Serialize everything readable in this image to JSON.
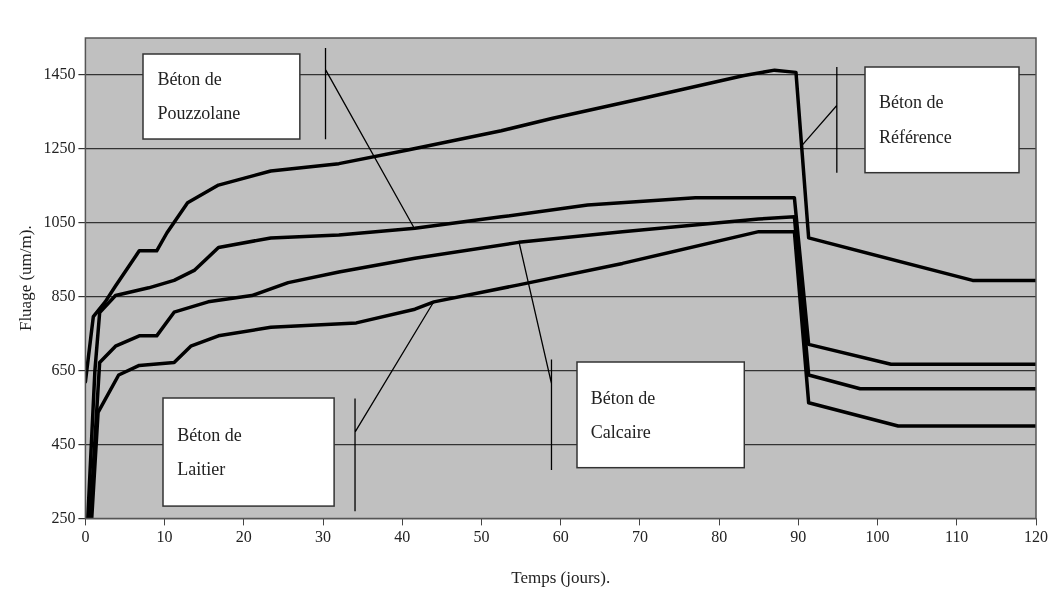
{
  "chart_data": {
    "type": "line",
    "xlabel": "Temps (jours).",
    "ylabel": "Fluage (um/m).",
    "xlim": [
      0,
      120
    ],
    "ylim": [
      250,
      1550
    ],
    "xticks": [
      0,
      10,
      20,
      30,
      40,
      50,
      60,
      70,
      80,
      90,
      100,
      110,
      120
    ],
    "yticks": [
      250,
      450,
      650,
      850,
      1050,
      1250,
      1450
    ],
    "grid": "y",
    "legend": false,
    "marker": "none",
    "line_style": "solid",
    "annotations": [
      "Béton de Référence",
      "Béton de Pouzzolane",
      "Béton de Calcaire",
      "Béton de Laitier"
    ],
    "series": [
      {
        "color": "#000000",
        "x": [
          0,
          1,
          2.5,
          3.8,
          6.8,
          9,
          10.3,
          12.9,
          16.8,
          23.4,
          32,
          40.7,
          52.5,
          59,
          70,
          83,
          87,
          89.7,
          91.3,
          112,
          120
        ],
        "values": [
          620,
          796,
          836,
          879,
          974,
          974,
          1023,
          1104,
          1152,
          1190,
          1210,
          1247,
          1299,
          1333,
          1385,
          1448,
          1463,
          1457,
          1009,
          894,
          894
        ]
      },
      {
        "color": "#000000",
        "x": [
          0.3,
          1.2,
          1.8,
          3.8,
          8,
          11.2,
          13.8,
          16.8,
          23.4,
          32,
          41.6,
          52.5,
          63.4,
          77,
          89.5,
          91.3,
          101.7,
          120
        ],
        "values": [
          250,
          650,
          807,
          853,
          874,
          894,
          922,
          983,
          1009,
          1017,
          1035,
          1066,
          1098,
          1118,
          1118,
          721,
          667,
          667
        ]
      },
      {
        "color": "#000000",
        "x": [
          0.6,
          1.8,
          3.8,
          6.8,
          9,
          11.2,
          15.5,
          21,
          25.6,
          32,
          41.6,
          54.7,
          67.8,
          85,
          89.5,
          91.3,
          97.8,
          120
        ],
        "values": [
          250,
          672,
          716,
          744,
          744,
          808,
          836,
          853,
          888,
          917,
          954,
          997,
          1026,
          1060,
          1066,
          638,
          601,
          601
        ]
      },
      {
        "color": "#000000",
        "x": [
          0.8,
          1.6,
          4.2,
          6.8,
          11.2,
          13.3,
          16.8,
          23.4,
          34.2,
          41.6,
          44,
          54.7,
          67.8,
          85,
          89.5,
          91.3,
          102.6,
          120
        ],
        "values": [
          250,
          537,
          638,
          664,
          672,
          716,
          744,
          767,
          779,
          816,
          836,
          882,
          940,
          1026,
          1026,
          563,
          500,
          500
        ]
      }
    ]
  }
}
